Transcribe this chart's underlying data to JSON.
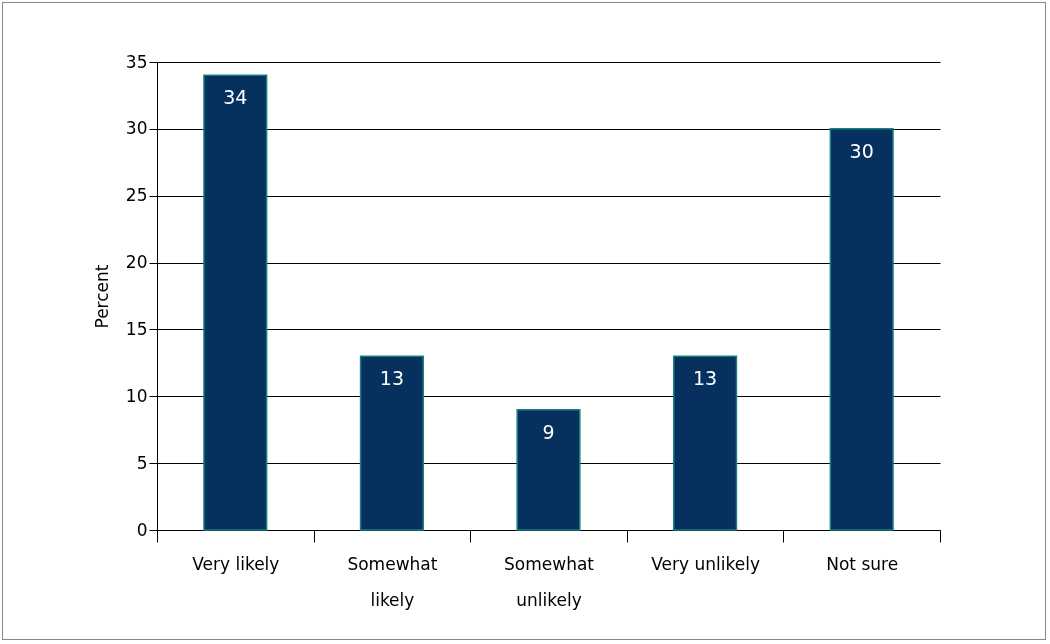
{
  "chart_data": {
    "type": "bar",
    "ylabel": "Percent",
    "categories": [
      "Very likely",
      "Somewhat likely",
      "Somewhat unlikely",
      "Very unlikely",
      "Not sure"
    ],
    "values": [
      34,
      13,
      9,
      13,
      30
    ],
    "color": "#06305e",
    "ylim": [
      0,
      35
    ],
    "yticks": [
      0,
      5,
      10,
      15,
      20,
      25,
      30,
      35
    ],
    "grid": "y",
    "data_labels": true
  }
}
